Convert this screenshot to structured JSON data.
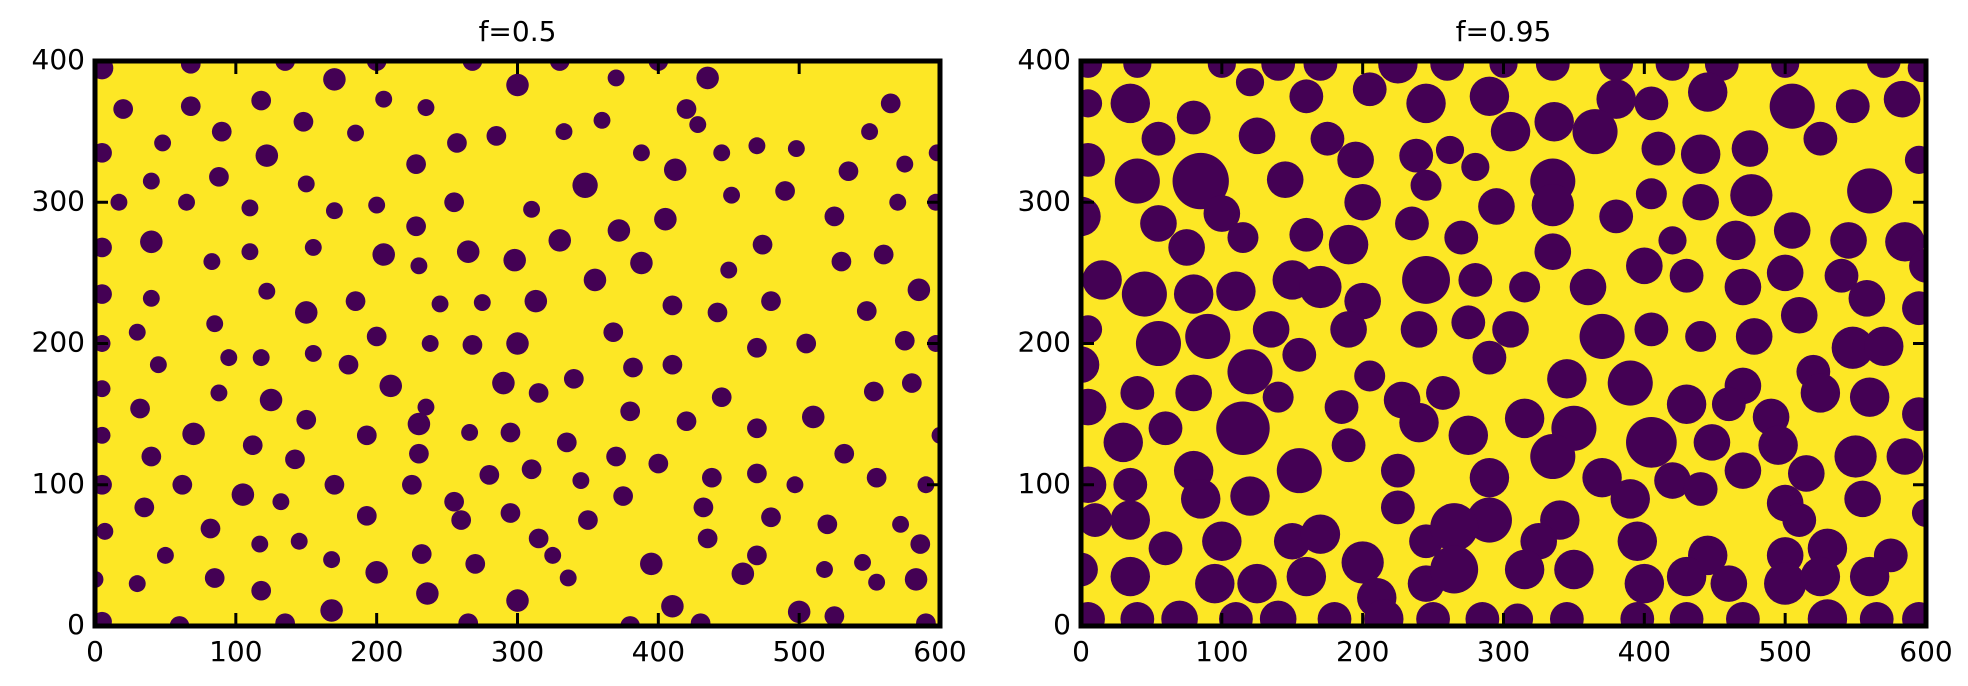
{
  "chart_data": [
    {
      "type": "circles",
      "title": "f=0.5",
      "background": "#fde725",
      "color": "#440154",
      "xlim": [
        0,
        600
      ],
      "ylim": [
        0,
        400
      ],
      "xticks": [
        0,
        100,
        200,
        300,
        400,
        500,
        600
      ],
      "yticks": [
        0,
        100,
        200,
        300,
        400
      ],
      "x": [
        5,
        68,
        135,
        200,
        268,
        330,
        400,
        170,
        300,
        370,
        435,
        565,
        20,
        118,
        205,
        235,
        420,
        68,
        48,
        90,
        148,
        185,
        257,
        285,
        333,
        360,
        388,
        428,
        498,
        470,
        550,
        5,
        122,
        228,
        412,
        445,
        535,
        575,
        598,
        88,
        40,
        150,
        348,
        490,
        17,
        65,
        110,
        200,
        255,
        310,
        405,
        452,
        570,
        597,
        170,
        228,
        372,
        525,
        40,
        110,
        155,
        205,
        265,
        298,
        330,
        388,
        474,
        530,
        560,
        5,
        83,
        230,
        355,
        450,
        5,
        40,
        122,
        245,
        275,
        313,
        410,
        442,
        480,
        585,
        150,
        185,
        548,
        30,
        85,
        368,
        200,
        118,
        238,
        268,
        300,
        505,
        575,
        597,
        5,
        95,
        155,
        45,
        180,
        340,
        382,
        410,
        470,
        5,
        210,
        290,
        315,
        88,
        125,
        235,
        380,
        445,
        510,
        553,
        580,
        32,
        150,
        230,
        295,
        420,
        470,
        5,
        70,
        193,
        266,
        600,
        112,
        335,
        40,
        142,
        230,
        370,
        532,
        5,
        62,
        105,
        170,
        225,
        280,
        310,
        345,
        400,
        438,
        470,
        497,
        555,
        590,
        35,
        132,
        255,
        295,
        375,
        432,
        480,
        7,
        82,
        193,
        260,
        350,
        520,
        572,
        117,
        145,
        315,
        435,
        586,
        50,
        168,
        232,
        270,
        325,
        395,
        470,
        545,
        0,
        30,
        85,
        200,
        336,
        460,
        518,
        555,
        583,
        118,
        236,
        300,
        168,
        410,
        500,
        5,
        60,
        135,
        265,
        380,
        430,
        525,
        590
      ],
      "y": [
        395,
        398,
        400,
        400,
        400,
        400,
        400,
        387,
        383,
        388,
        388,
        370,
        366,
        372,
        373,
        367,
        366,
        368,
        342,
        350,
        357,
        349,
        342,
        347,
        350,
        358,
        335,
        355,
        338,
        340,
        350,
        335,
        333,
        327,
        323,
        335,
        322,
        327,
        335,
        318,
        315,
        313,
        312,
        308,
        300,
        300,
        296,
        298,
        300,
        295,
        288,
        305,
        300,
        300,
        294,
        283,
        280,
        290,
        272,
        265,
        268,
        263,
        265,
        259,
        273,
        257,
        270,
        258,
        263,
        268,
        258,
        255,
        245,
        252,
        235,
        232,
        237,
        228,
        229,
        230,
        227,
        222,
        230,
        238,
        222,
        230,
        223,
        208,
        214,
        208,
        205,
        190,
        200,
        199,
        200,
        200,
        202,
        200,
        200,
        190,
        193,
        185,
        185,
        175,
        183,
        185,
        197,
        168,
        170,
        172,
        165,
        165,
        160,
        155,
        152,
        162,
        148,
        166,
        172,
        154,
        146,
        143,
        137,
        145,
        140,
        135,
        136,
        135,
        137,
        135,
        128,
        130,
        120,
        118,
        122,
        120,
        122,
        100,
        100,
        93,
        100,
        100,
        107,
        111,
        103,
        115,
        105,
        108,
        100,
        105,
        100,
        84,
        88,
        88,
        80,
        92,
        84,
        77,
        67,
        69,
        78,
        75,
        75,
        72,
        72,
        58,
        60,
        62,
        62,
        58,
        50,
        47,
        51,
        44,
        50,
        44,
        50,
        45,
        33,
        30,
        34,
        38,
        34,
        37,
        40,
        31,
        33,
        25,
        23,
        18,
        11,
        14,
        10,
        3,
        0,
        2,
        2,
        0,
        2,
        7,
        2
      ],
      "r": [
        8,
        7,
        7,
        7,
        7,
        7,
        7,
        8,
        8,
        6,
        8,
        7,
        7,
        7,
        6,
        6,
        7,
        7,
        6,
        7,
        7,
        6,
        7,
        7,
        6,
        6,
        6,
        6,
        6,
        6,
        6,
        7,
        8,
        7,
        8,
        6,
        7,
        6,
        6,
        7,
        6,
        6,
        9,
        7,
        6,
        6,
        6,
        6,
        7,
        6,
        8,
        6,
        6,
        6,
        6,
        7,
        8,
        7,
        8,
        6,
        6,
        8,
        8,
        8,
        8,
        8,
        7,
        7,
        7,
        7,
        6,
        6,
        8,
        6,
        7,
        6,
        6,
        6,
        6,
        8,
        7,
        7,
        7,
        8,
        8,
        7,
        7,
        6,
        6,
        7,
        7,
        6,
        6,
        7,
        8,
        7,
        7,
        6,
        6,
        6,
        6,
        6,
        7,
        7,
        7,
        7,
        7,
        6,
        8,
        8,
        7,
        6,
        8,
        6,
        7,
        7,
        8,
        7,
        7,
        7,
        7,
        8,
        7,
        7,
        7,
        6,
        8,
        7,
        6,
        6,
        7,
        7,
        7,
        7,
        7,
        7,
        7,
        7,
        7,
        8,
        7,
        7,
        7,
        7,
        6,
        7,
        7,
        7,
        6,
        7,
        6,
        7,
        6,
        7,
        7,
        7,
        7,
        7,
        6,
        7,
        7,
        7,
        7,
        7,
        6,
        6,
        6,
        7,
        7,
        7,
        6,
        6,
        7,
        7,
        6,
        8,
        7,
        6,
        6,
        6,
        7,
        8,
        6,
        8,
        6,
        6,
        8,
        7,
        8,
        8,
        8,
        8,
        8,
        7,
        7,
        7,
        7,
        7,
        7,
        7,
        7
      ]
    },
    {
      "type": "circles",
      "title": "f=0.95",
      "background": "#fde725",
      "color": "#440154",
      "xlim": [
        0,
        600
      ],
      "ylim": [
        0,
        400
      ],
      "xticks": [
        0,
        100,
        200,
        300,
        400,
        500,
        600
      ],
      "yticks": [
        0,
        100,
        200,
        300,
        400
      ],
      "x": [
        5,
        40,
        100,
        140,
        170,
        225,
        260,
        300,
        335,
        380,
        420,
        455,
        500,
        570,
        597,
        35,
        80,
        120,
        160,
        205,
        245,
        290,
        380,
        405,
        445,
        505,
        548,
        583,
        5,
        55,
        125,
        175,
        238,
        262,
        305,
        336,
        365,
        410,
        440,
        525,
        5,
        40,
        85,
        145,
        195,
        245,
        280,
        335,
        405,
        440,
        475,
        476,
        560,
        595,
        0,
        55,
        100,
        200,
        235,
        295,
        335,
        380,
        465,
        505,
        545,
        585,
        75,
        115,
        160,
        190,
        270,
        335,
        400,
        420,
        15,
        45,
        80,
        110,
        150,
        170,
        200,
        245,
        280,
        315,
        360,
        430,
        470,
        500,
        540,
        600,
        5,
        55,
        90,
        135,
        190,
        240,
        275,
        305,
        370,
        405,
        440,
        478,
        510,
        558,
        595,
        0,
        120,
        155,
        205,
        290,
        345,
        390,
        430,
        470,
        490,
        520,
        548,
        570,
        5,
        40,
        80,
        140,
        185,
        228,
        257,
        315,
        350,
        460,
        525,
        560,
        595,
        30,
        60,
        115,
        190,
        240,
        275,
        405,
        448,
        495,
        5,
        35,
        80,
        155,
        225,
        290,
        335,
        370,
        420,
        470,
        515,
        550,
        585,
        35,
        85,
        120,
        225,
        290,
        340,
        390,
        440,
        500,
        510,
        555,
        600,
        10,
        60,
        100,
        150,
        170,
        200,
        245,
        265,
        325,
        395,
        445,
        500,
        530,
        575,
        0,
        35,
        95,
        125,
        160,
        210,
        245,
        265,
        315,
        350,
        400,
        430,
        460,
        500,
        525,
        560,
        5,
        40,
        70,
        110,
        140,
        180,
        215,
        250,
        285,
        310,
        345,
        395,
        430,
        470,
        530,
        565,
        595
      ],
      "y": [
        398,
        398,
        398,
        398,
        398,
        398,
        398,
        398,
        398,
        398,
        398,
        398,
        398,
        400,
        395,
        370,
        360,
        385,
        375,
        380,
        370,
        375,
        373,
        370,
        378,
        368,
        368,
        373,
        370,
        345,
        347,
        345,
        333,
        337,
        350,
        357,
        350,
        338,
        334,
        345,
        330,
        315,
        315,
        316,
        330,
        312,
        325,
        315,
        306,
        300,
        338,
        305,
        308,
        330,
        290,
        285,
        292,
        300,
        285,
        297,
        298,
        290,
        273,
        280,
        273,
        272,
        268,
        275,
        277,
        270,
        275,
        265,
        255,
        273,
        245,
        235,
        235,
        237,
        245,
        240,
        230,
        245,
        245,
        240,
        240,
        248,
        240,
        250,
        248,
        255,
        210,
        200,
        205,
        210,
        210,
        210,
        215,
        210,
        205,
        210,
        205,
        205,
        220,
        232,
        225,
        185,
        180,
        192,
        177,
        190,
        175,
        172,
        157,
        170,
        148,
        180,
        197,
        198,
        155,
        165,
        165,
        162,
        155,
        160,
        165,
        147,
        140,
        157,
        165,
        162,
        150,
        130,
        140,
        140,
        128,
        144,
        135,
        130,
        130,
        128,
        100,
        100,
        110,
        110,
        110,
        105,
        120,
        105,
        103,
        110,
        108,
        120,
        120,
        75,
        90,
        92,
        84,
        75,
        75,
        90,
        97,
        87,
        75,
        90,
        80,
        75,
        55,
        60,
        60,
        65,
        45,
        60,
        70,
        60,
        60,
        50,
        50,
        55,
        50,
        40,
        35,
        30,
        30,
        35,
        20,
        30,
        40,
        40,
        40,
        30,
        35,
        30,
        30,
        35,
        35,
        5,
        5,
        5,
        5,
        5,
        5,
        5,
        5,
        5,
        5,
        5,
        5,
        5,
        5,
        5,
        5,
        5
      ],
      "r": [
        10,
        10,
        10,
        12,
        12,
        14,
        12,
        10,
        12,
        12,
        12,
        12,
        10,
        12,
        10,
        14,
        12,
        10,
        12,
        12,
        14,
        14,
        14,
        12,
        14,
        16,
        12,
        13,
        10,
        12,
        13,
        12,
        12,
        10,
        14,
        14,
        16,
        12,
        14,
        12,
        12,
        16,
        20,
        13,
        13,
        11,
        10,
        16,
        11,
        13,
        13,
        15,
        16,
        10,
        14,
        13,
        13,
        13,
        12,
        13,
        15,
        12,
        14,
        13,
        13,
        14,
        13,
        11,
        12,
        14,
        12,
        13,
        13,
        10,
        14,
        16,
        14,
        14,
        14,
        15,
        13,
        17,
        12,
        11,
        13,
        12,
        13,
        13,
        12,
        12,
        10,
        16,
        16,
        13,
        13,
        13,
        12,
        13,
        16,
        12,
        11,
        13,
        13,
        13,
        12,
        13,
        16,
        12,
        11,
        12,
        14,
        16,
        14,
        13,
        13,
        12,
        15,
        14,
        13,
        12,
        13,
        11,
        12,
        13,
        12,
        14,
        16,
        12,
        14,
        14,
        12,
        14,
        12,
        19,
        12,
        14,
        14,
        18,
        13,
        14,
        13,
        12,
        14,
        16,
        12,
        14,
        16,
        14,
        13,
        13,
        13,
        15,
        13,
        14,
        14,
        14,
        12,
        16,
        14,
        14,
        12,
        13,
        12,
        13,
        10,
        12,
        12,
        14,
        13,
        14,
        15,
        12,
        17,
        13,
        14,
        14,
        13,
        14,
        12,
        12,
        14,
        14,
        14,
        14,
        14,
        13,
        17,
        14,
        14,
        14,
        14,
        13,
        15,
        14,
        14,
        12,
        12,
        13,
        12,
        13,
        12,
        14,
        12,
        12,
        11,
        12,
        12,
        12,
        12,
        14,
        12,
        12
      ]
    }
  ]
}
